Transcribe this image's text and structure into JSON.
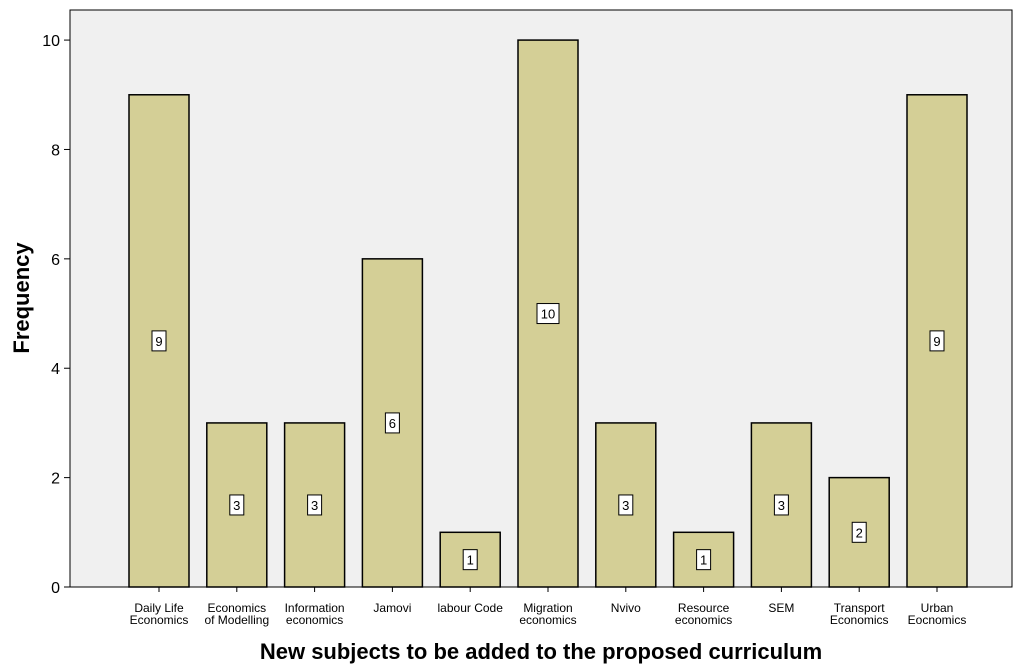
{
  "chart_data": {
    "type": "bar",
    "categories": [
      [
        "Daily Life",
        "Economics"
      ],
      [
        "Economics",
        "of Modelling"
      ],
      [
        "Information",
        "economics"
      ],
      [
        "Jamovi"
      ],
      [
        "labour Code"
      ],
      [
        "Migration",
        "economics"
      ],
      [
        "Nvivo"
      ],
      [
        "Resource",
        "economics"
      ],
      [
        "SEM"
      ],
      [
        "Transport",
        "Economics"
      ],
      [
        "Urban",
        "Eocnomics"
      ]
    ],
    "values": [
      9,
      3,
      3,
      6,
      1,
      10,
      3,
      1,
      3,
      2,
      9
    ],
    "data_labels": [
      "9",
      "3",
      "3",
      "6",
      "1",
      "10",
      "3",
      "1",
      "3",
      "2",
      "9"
    ],
    "xlabel": "New subjects to be added to the proposed curriculum",
    "ylabel": "Frequency",
    "ylim": [
      0,
      10.55
    ],
    "yticks": [
      0,
      2,
      4,
      6,
      8,
      10
    ],
    "grid": false,
    "colors": {
      "bar_fill": "#d4cf96",
      "bar_stroke": "#000000",
      "plot_background": "#f0f0f0"
    }
  }
}
